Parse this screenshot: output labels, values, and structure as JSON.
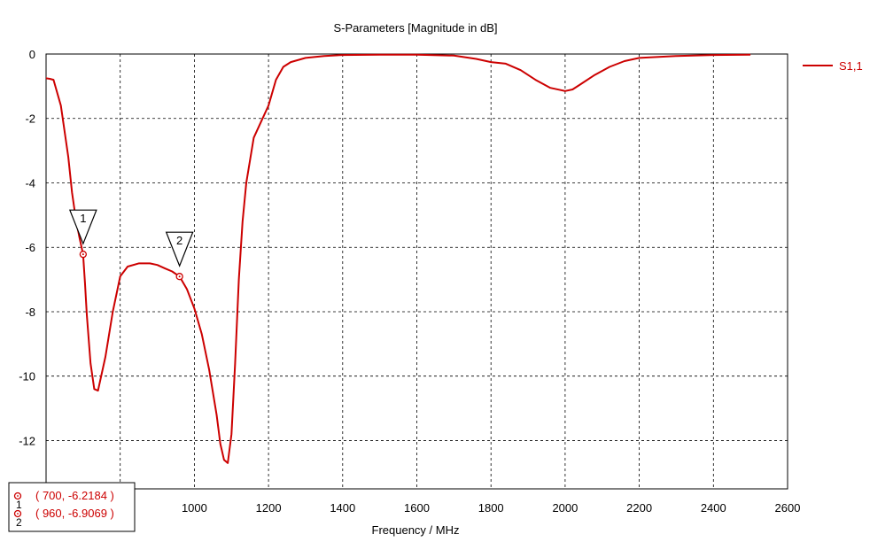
{
  "chart_data": {
    "type": "line",
    "title": "S-Parameters [Magnitude in dB]",
    "xlabel": "Frequency / MHz",
    "ylabel": "",
    "xlim": [
      600,
      2600
    ],
    "ylim": [
      -13.5,
      0
    ],
    "xticks": [
      800,
      1000,
      1200,
      1400,
      1600,
      1800,
      2000,
      2200,
      2400,
      2600
    ],
    "yticks": [
      0,
      -2,
      -4,
      -6,
      -8,
      -10,
      -12
    ],
    "grid": true,
    "legend_position": "top-right",
    "line_color": "#cc0000",
    "series": [
      {
        "name": "S1,1",
        "x": [
          500,
          520,
          540,
          560,
          580,
          600,
          610,
          620,
          640,
          660,
          670,
          680,
          690,
          700,
          705,
          710,
          720,
          730,
          740,
          760,
          780,
          800,
          820,
          850,
          880,
          900,
          920,
          940,
          960,
          980,
          1000,
          1020,
          1040,
          1060,
          1070,
          1080,
          1090,
          1100,
          1110,
          1120,
          1130,
          1140,
          1160,
          1180,
          1200,
          1220,
          1240,
          1260,
          1300,
          1350,
          1400,
          1500,
          1600,
          1700,
          1760,
          1800,
          1840,
          1880,
          1920,
          1960,
          2000,
          2020,
          2040,
          2080,
          2120,
          2160,
          2200,
          2300,
          2400,
          2500
        ],
        "y": [
          0,
          0,
          -0.05,
          -0.15,
          -0.4,
          -0.75,
          -0.77,
          -0.8,
          -1.6,
          -3.2,
          -4.3,
          -5.1,
          -5.7,
          -6.2184,
          -7.1,
          -8.1,
          -9.6,
          -10.4,
          -10.45,
          -9.4,
          -8.0,
          -6.9,
          -6.6,
          -6.5,
          -6.5,
          -6.55,
          -6.65,
          -6.75,
          -6.9069,
          -7.3,
          -7.9,
          -8.7,
          -9.8,
          -11.2,
          -12.1,
          -12.6,
          -12.7,
          -11.8,
          -9.6,
          -7.0,
          -5.2,
          -4.0,
          -2.6,
          -2.1,
          -1.6,
          -0.8,
          -0.4,
          -0.25,
          -0.12,
          -0.06,
          -0.03,
          -0.02,
          -0.02,
          -0.05,
          -0.15,
          -0.25,
          -0.3,
          -0.5,
          -0.8,
          -1.05,
          -1.15,
          -1.1,
          -0.95,
          -0.65,
          -0.4,
          -0.22,
          -0.12,
          -0.06,
          -0.03,
          -0.02
        ]
      }
    ],
    "markers": [
      {
        "id": "1",
        "x": 700,
        "y": -6.2184,
        "readout": "( 700, -6.2184 )"
      },
      {
        "id": "2",
        "x": 960,
        "y": -6.9069,
        "readout": "( 960, -6.9069 )"
      }
    ]
  }
}
